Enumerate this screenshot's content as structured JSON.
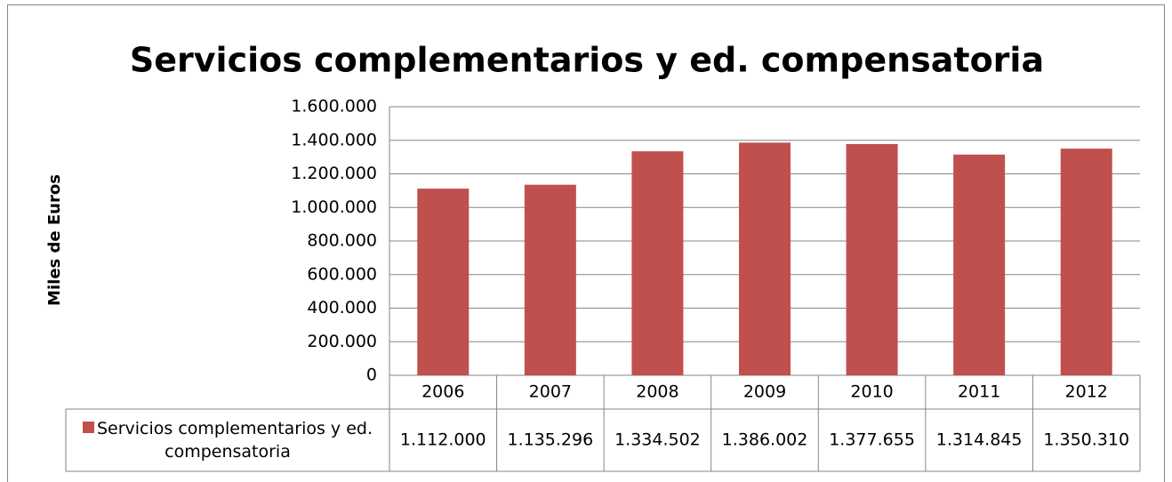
{
  "chart_data": {
    "type": "bar",
    "title": "Servicios complementarios y ed. compensatoria",
    "y_label": "Miles de Euros",
    "categories": [
      "2006",
      "2007",
      "2008",
      "2009",
      "2010",
      "2011",
      "2012"
    ],
    "series": [
      {
        "name": "Servicios complementarios y ed. compensatoria",
        "color": "#c0504d",
        "values": [
          1112000,
          1135296,
          1334502,
          1386002,
          1377655,
          1314845,
          1350310
        ],
        "value_labels": [
          "1.112.000",
          "1.135.296",
          "1.334.502",
          "1.386.002",
          "1.377.655",
          "1.314.845",
          "1.350.310"
        ]
      }
    ],
    "ylim": [
      0,
      1600000
    ],
    "yticks": [
      0,
      {
        "value": 200000,
        "label": "200.000"
      },
      {
        "value": 400000,
        "label": "400.000"
      },
      {
        "value": 600000,
        "label": "600.000"
      },
      {
        "value": 800000,
        "label": "800.000"
      },
      {
        "value": 1000000,
        "label": "1.000.000"
      },
      {
        "value": 1200000,
        "label": "1.200.000"
      },
      {
        "value": 1400000,
        "label": "1.400.000"
      },
      {
        "value": 1600000,
        "label": "1.600.000"
      }
    ],
    "grid": true,
    "data_table": true
  }
}
